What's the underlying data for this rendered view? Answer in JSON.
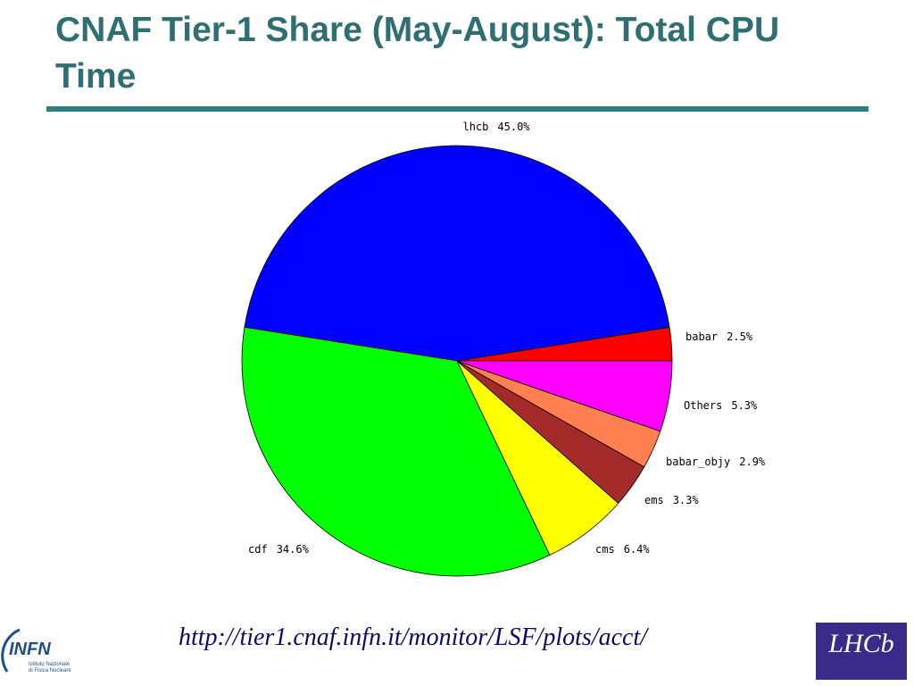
{
  "chart_data": {
    "type": "pie",
    "title": "CNAF Tier-1 Share (May-August): Total CPU Time",
    "categories": [
      "babar",
      "lhcb",
      "cdf",
      "cms",
      "ems",
      "babar_objy",
      "Others"
    ],
    "values": [
      2.5,
      45.0,
      34.6,
      6.4,
      3.3,
      2.9,
      5.3
    ],
    "value_labels": [
      "2.5%",
      "45.0%",
      "34.6%",
      "6.4%",
      "3.3%",
      "2.9%",
      "5.3%"
    ],
    "colors": [
      "#ff0000",
      "#0000ff",
      "#00ff00",
      "#ffff00",
      "#a52a2a",
      "#ff7f50",
      "#ff00ff"
    ]
  },
  "footer": {
    "url": "http://tier1.cnaf.infn.it/monitor/LSF/plots/acct/",
    "infn_logo": {
      "name": "INFN",
      "line1": "Istituto Nazionale",
      "line2": "di Fisica Nucleare"
    },
    "lhcb_logo": {
      "name": "LHCb"
    }
  }
}
